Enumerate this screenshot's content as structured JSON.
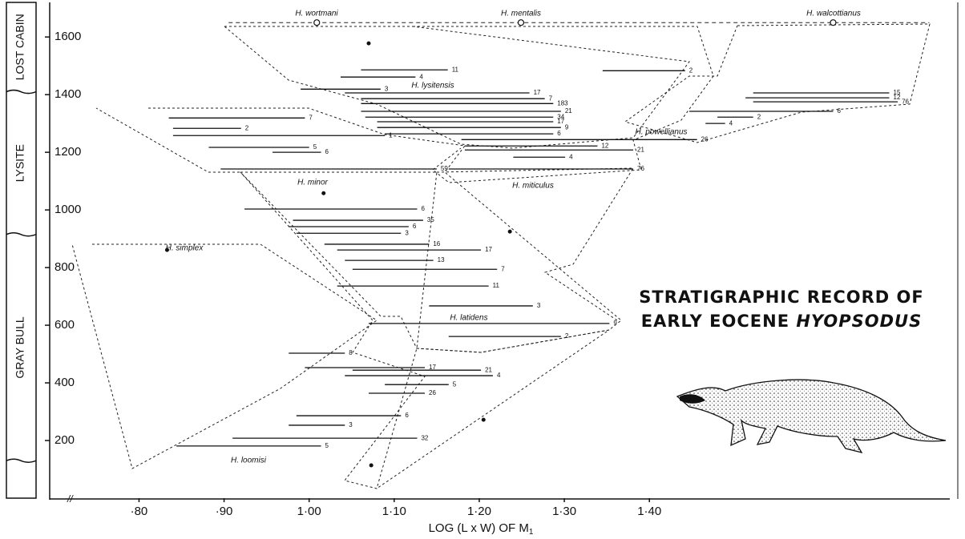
{
  "chart_data": {
    "type": "range",
    "title": "STRATIGRAPHIC RECORD OF",
    "subtitle": "EARLY EOCENE",
    "title_italic": "HYOPSODUS",
    "x_label": "LOG (L x W) OF M",
    "x_label_subscript": "1",
    "xlim": [
      0.695,
      1.739
    ],
    "ylim": [
      0,
      1720
    ],
    "xticks": [
      {
        "value": 0.8,
        "label": "·80"
      },
      {
        "value": 0.9,
        "label": "·90"
      },
      {
        "value": 1.0,
        "label": "1·00"
      },
      {
        "value": 1.1,
        "label": "1·10"
      },
      {
        "value": 1.2,
        "label": "1·20"
      },
      {
        "value": 1.3,
        "label": "1·30"
      },
      {
        "value": 1.4,
        "label": "1·40"
      }
    ],
    "yticks": [
      200,
      400,
      600,
      800,
      1000,
      1200,
      1400,
      1600
    ],
    "units": [
      {
        "name": "GRAY BULL",
        "from": 130,
        "to": 915
      },
      {
        "name": "LYSITE",
        "from": 915,
        "to": 1410
      },
      {
        "name": "LOST CABIN",
        "from": 1410,
        "to": 1720
      }
    ],
    "species": [
      "H. wortmani",
      "H. mentalis",
      "H. walcottianus",
      "H. lysitensis",
      "H. powellianus",
      "H. minor",
      "H. miticulus",
      "H. simplex",
      "H. latidens",
      "H. loomisi"
    ],
    "types": {
      "x": [
        1.009,
        1.249,
        1.616
      ],
      "level": 1650
    },
    "singles": {
      "x": [
        1.07,
        1.017,
        1.236,
        1.073,
        1.205,
        0.833
      ],
      "levels": [
        1578,
        1058,
        925,
        114,
        272,
        861
      ]
    },
    "color": "#111111",
    "ranges": [
      {
        "level": 1486,
        "low": 1.061,
        "high": 1.163,
        "n": 11
      },
      {
        "level": 1483,
        "low": 1.345,
        "high": 1.442,
        "n": 2
      },
      {
        "level": 1461,
        "low": 1.037,
        "high": 1.125,
        "n": 4
      },
      {
        "level": 1419,
        "low": 0.99,
        "high": 1.084,
        "n": 3
      },
      {
        "level": 1406,
        "low": 1.042,
        "high": 1.259,
        "n": 17
      },
      {
        "level": 1386,
        "low": 1.061,
        "high": 1.277,
        "n": 7
      },
      {
        "level": 1369,
        "low": 1.061,
        "high": 1.287,
        "n": 183
      },
      {
        "level": 1342,
        "low": 1.061,
        "high": 1.296,
        "n": 21
      },
      {
        "level": 1322,
        "low": 1.066,
        "high": 1.287,
        "n": 34
      },
      {
        "level": 1306,
        "low": 1.08,
        "high": 1.287,
        "n": 17
      },
      {
        "level": 1286,
        "low": 1.08,
        "high": 1.296,
        "n": 9
      },
      {
        "level": 1264,
        "low": 1.089,
        "high": 1.287,
        "n": 6
      },
      {
        "level": 1244,
        "low": 1.179,
        "high": 1.456,
        "n": 26
      },
      {
        "level": 1222,
        "low": 1.183,
        "high": 1.339,
        "n": 12
      },
      {
        "level": 1208,
        "low": 1.183,
        "high": 1.381,
        "n": 21
      },
      {
        "level": 1183,
        "low": 1.24,
        "high": 1.301,
        "n": 4
      },
      {
        "level": 1142,
        "low": 1.164,
        "high": 1.381,
        "n": 76
      },
      {
        "level": 1406,
        "low": 1.522,
        "high": 1.682,
        "n": 15
      },
      {
        "level": 1389,
        "low": 1.513,
        "high": 1.682,
        "n": 12
      },
      {
        "level": 1375,
        "low": 1.522,
        "high": 1.692,
        "n": 76
      },
      {
        "level": 1342,
        "low": 1.447,
        "high": 1.616,
        "n": 6
      },
      {
        "level": 1322,
        "low": 1.48,
        "high": 1.522,
        "n": 2
      },
      {
        "level": 1300,
        "low": 1.466,
        "high": 1.489,
        "n": 4
      },
      {
        "level": 1319,
        "low": 0.835,
        "high": 0.995,
        "n": 7
      },
      {
        "level": 1283,
        "low": 0.84,
        "high": 0.92,
        "n": 2
      },
      {
        "level": 1258,
        "low": 0.84,
        "high": 1.089,
        "n": 1
      },
      {
        "level": 1217,
        "low": 0.882,
        "high": 1.0,
        "n": 5
      },
      {
        "level": 1200,
        "low": 0.957,
        "high": 1.014,
        "n": 6
      },
      {
        "level": 1142,
        "low": 0.896,
        "high": 1.15,
        "n": 59
      },
      {
        "level": 1003,
        "low": 0.924,
        "high": 1.127,
        "n": 6
      },
      {
        "level": 964,
        "low": 0.981,
        "high": 1.134,
        "n": 35
      },
      {
        "level": 942,
        "low": 0.976,
        "high": 1.117,
        "n": 6
      },
      {
        "level": 919,
        "low": 0.985,
        "high": 1.108,
        "n": 3
      },
      {
        "level": 881,
        "low": 1.018,
        "high": 1.141,
        "n": 16
      },
      {
        "level": 861,
        "low": 1.033,
        "high": 1.202,
        "n": 17
      },
      {
        "level": 825,
        "low": 1.042,
        "high": 1.146,
        "n": 13
      },
      {
        "level": 794,
        "low": 1.051,
        "high": 1.221,
        "n": 7
      },
      {
        "level": 736,
        "low": 1.033,
        "high": 1.211,
        "n": 11
      },
      {
        "level": 667,
        "low": 1.141,
        "high": 1.263,
        "n": 3
      },
      {
        "level": 606,
        "low": 1.07,
        "high": 1.353,
        "n": 9
      },
      {
        "level": 561,
        "low": 1.164,
        "high": 1.296,
        "n": 2
      },
      {
        "level": 503,
        "low": 0.976,
        "high": 1.042,
        "n": 8
      },
      {
        "level": 453,
        "low": 0.995,
        "high": 1.136,
        "n": 17
      },
      {
        "level": 444,
        "low": 1.051,
        "high": 1.202,
        "n": 21
      },
      {
        "level": 425,
        "low": 1.042,
        "high": 1.216,
        "n": 4
      },
      {
        "level": 394,
        "low": 1.089,
        "high": 1.164,
        "n": 5
      },
      {
        "level": 364,
        "low": 1.07,
        "high": 1.136,
        "n": 26
      },
      {
        "level": 286,
        "low": 0.985,
        "high": 1.108,
        "n": 6
      },
      {
        "level": 253,
        "low": 0.976,
        "high": 1.042,
        "n": 3
      },
      {
        "level": 208,
        "low": 0.91,
        "high": 1.127,
        "n": 32
      },
      {
        "level": 181,
        "low": 0.844,
        "high": 1.014,
        "n": 5
      }
    ]
  }
}
